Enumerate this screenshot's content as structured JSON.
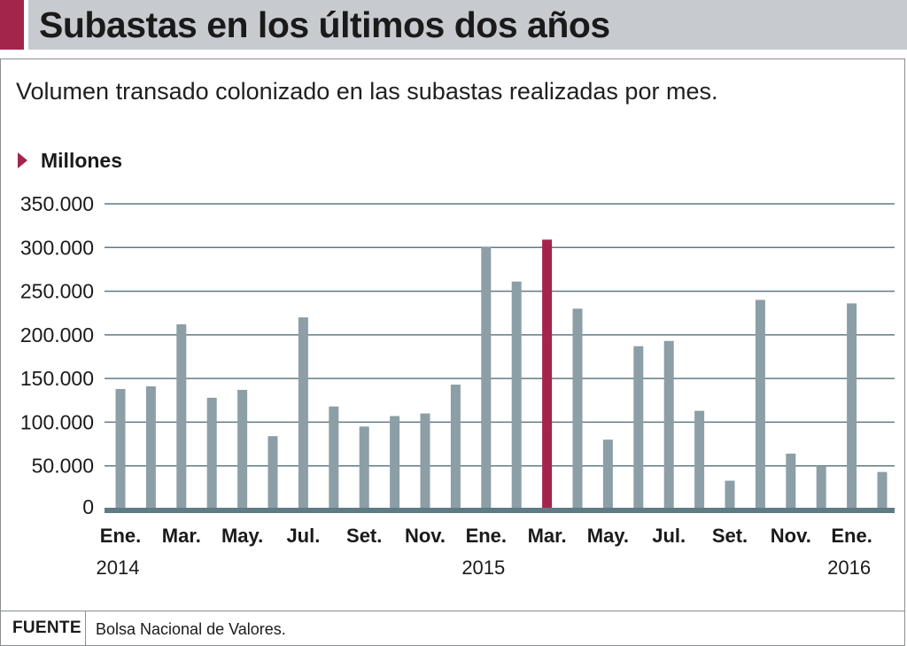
{
  "title": "Subastas en los últimos dos años",
  "subtitle": "Volumen transado colonizado en las subastas realizadas por mes.",
  "unit_label": "Millones",
  "footer": {
    "source_label": "FUENTE",
    "source_text": "Bolsa Nacional de Valores."
  },
  "colors": {
    "bar": "#8c9ea6",
    "highlight": "#a3254c",
    "axis": "#5f7b86",
    "grid": "#5f7b86",
    "title_bar": "#c7cbd0"
  },
  "chart_data": {
    "type": "bar",
    "title": "Subastas en los últimos dos años",
    "ylabel": "Millones",
    "xlabel": "",
    "ylim": [
      0,
      350000
    ],
    "yticks": [
      0,
      50000,
      100000,
      150000,
      200000,
      250000,
      300000,
      350000
    ],
    "ytick_labels": [
      "0",
      "50.000",
      "100.000",
      "150.000",
      "200.000",
      "250.000",
      "300.000",
      "350.000"
    ],
    "grid": true,
    "highlight_index": 14,
    "values": [
      138000,
      141000,
      212000,
      128000,
      137000,
      84000,
      220000,
      118000,
      95000,
      107000,
      110000,
      143000,
      301000,
      261000,
      309000,
      230000,
      80000,
      187000,
      193000,
      113000,
      33000,
      240000,
      64000,
      50000,
      236000,
      43000
    ],
    "tick_labels": [
      {
        "index": 0,
        "label": "Ene."
      },
      {
        "index": 2,
        "label": "Mar."
      },
      {
        "index": 4,
        "label": "May."
      },
      {
        "index": 6,
        "label": "Jul."
      },
      {
        "index": 8,
        "label": "Set."
      },
      {
        "index": 10,
        "label": "Nov."
      },
      {
        "index": 12,
        "label": "Ene."
      },
      {
        "index": 14,
        "label": "Mar."
      },
      {
        "index": 16,
        "label": "May."
      },
      {
        "index": 18,
        "label": "Jul."
      },
      {
        "index": 20,
        "label": "Set."
      },
      {
        "index": 22,
        "label": "Nov."
      },
      {
        "index": 24,
        "label": "Ene."
      }
    ],
    "year_labels": [
      {
        "index": 0,
        "label": "2014"
      },
      {
        "index": 12,
        "label": "2015"
      },
      {
        "index": 24,
        "label": "2016"
      }
    ]
  }
}
